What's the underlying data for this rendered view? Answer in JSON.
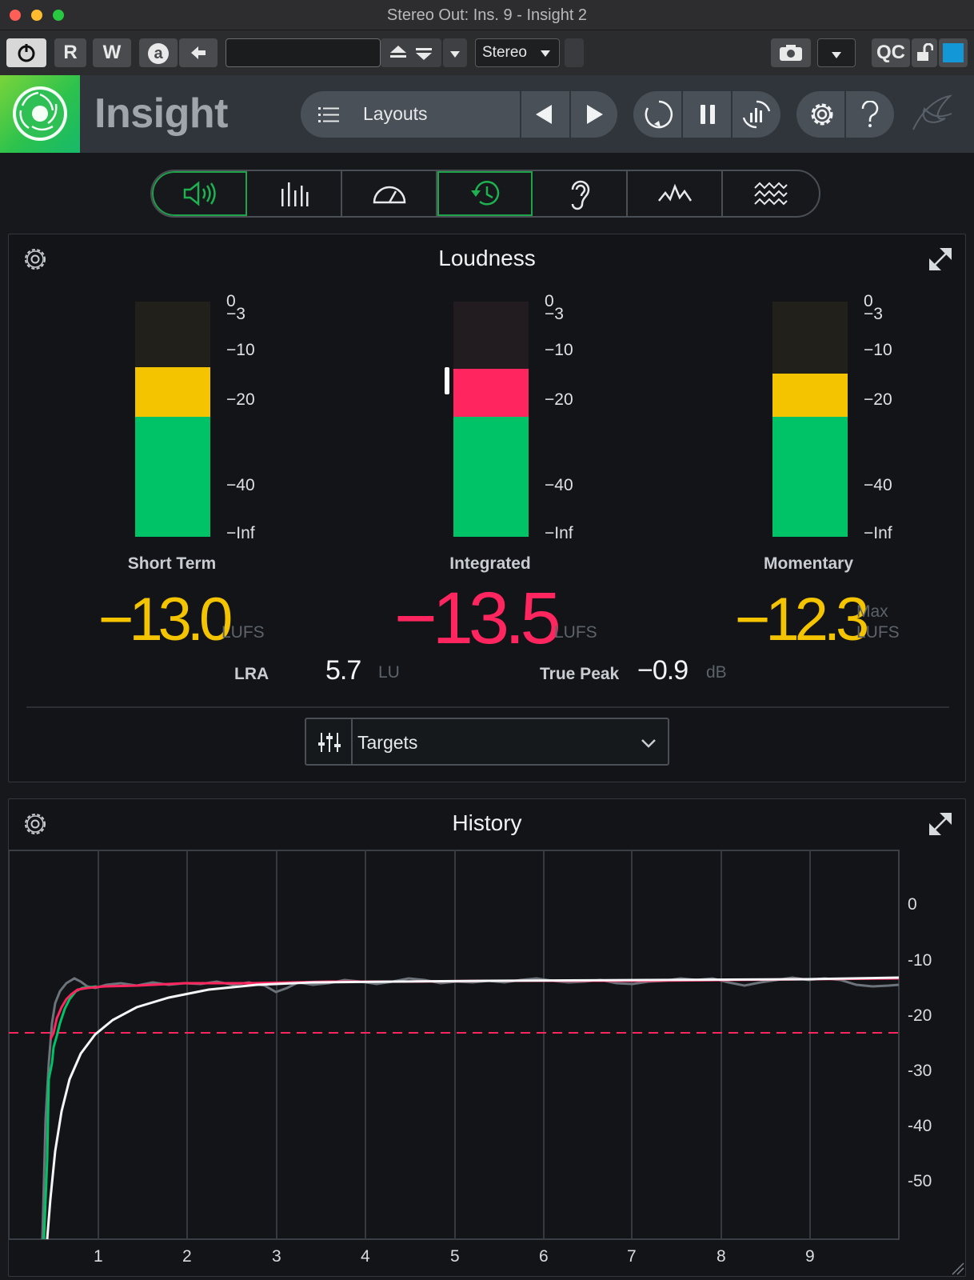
{
  "window": {
    "title": "Stereo Out: Ins. 9 - Insight 2"
  },
  "host_toolbar": {
    "read_label": "R",
    "write_label": "W",
    "auto_label": "a",
    "preset_value": "",
    "routing_value": "Stereo",
    "qc_label": "QC",
    "colors": {
      "channel_color": "#1497d6"
    }
  },
  "plugin_header": {
    "app_name": "Insight",
    "layouts_label": "Layouts",
    "colors": {
      "logo_tile": "#2cc24d"
    }
  },
  "module_tabs": [
    {
      "icon": "speaker-icon",
      "active": true
    },
    {
      "icon": "spectrum-bars-icon",
      "active": false
    },
    {
      "icon": "gauge-icon",
      "active": false
    },
    {
      "icon": "history-clock-icon",
      "active": true
    },
    {
      "icon": "ear-icon",
      "active": false
    },
    {
      "icon": "waveform-peaks-icon",
      "active": false
    },
    {
      "icon": "spectrogram-icon",
      "active": false
    }
  ],
  "loudness": {
    "title": "Loudness",
    "scale_ticks": [
      "0",
      "−3",
      "−10",
      "−20",
      "−40",
      "−Inf"
    ],
    "short_term": {
      "label": "Short Term",
      "value": "−13.0",
      "unit": "LUFS",
      "color": "#f5c400"
    },
    "integrated": {
      "label": "Integrated",
      "value": "−13.5",
      "unit": "LUFS",
      "color": "#ff2660"
    },
    "momentary": {
      "label": "Momentary",
      "value": "−12.3",
      "unit_max": "Max",
      "unit": "LUFS",
      "color": "#f5c400"
    },
    "lra": {
      "label": "LRA",
      "value": "5.7",
      "unit": "LU"
    },
    "true_peak": {
      "label": "True Peak",
      "value": "−0.9",
      "unit": "dB"
    },
    "targets_label": "Targets",
    "colors": {
      "green": "#00c266",
      "yellow": "#f5c400",
      "red": "#ff2660"
    }
  },
  "history": {
    "title": "History",
    "y_ticks": [
      "0",
      "-10",
      "-20",
      "-30",
      "-40",
      "-50"
    ],
    "x_ticks": [
      "1",
      "2",
      "3",
      "4",
      "5",
      "6",
      "7",
      "8",
      "9"
    ]
  }
}
